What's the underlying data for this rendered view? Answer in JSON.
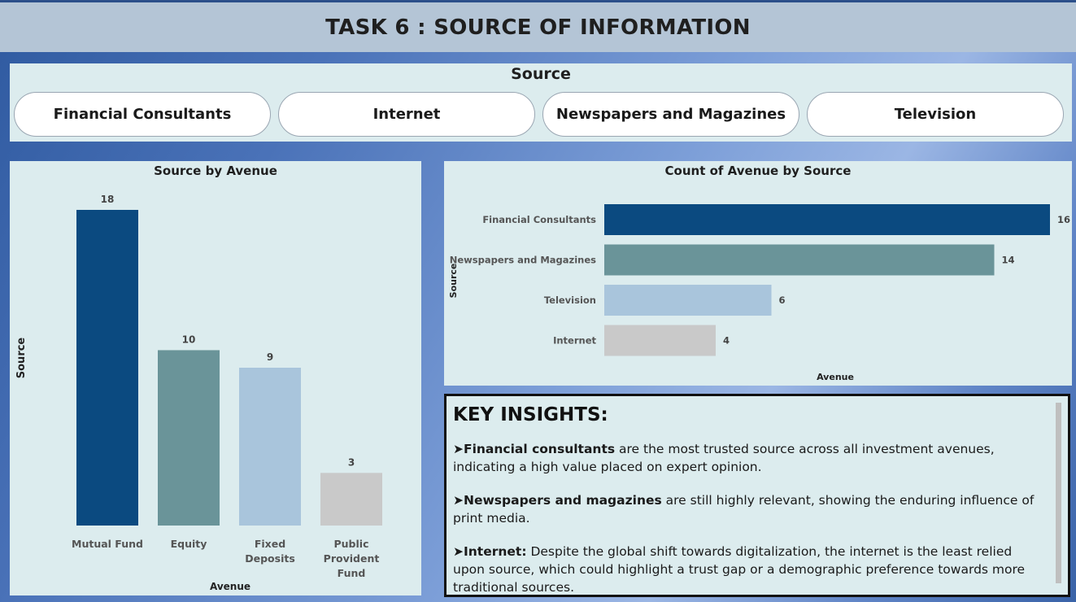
{
  "title": "TASK 6 : SOURCE OF INFORMATION",
  "slicer": {
    "title": "Source",
    "buttons": [
      "Financial Consultants",
      "Internet",
      "Newspapers and Magazines",
      "Television"
    ]
  },
  "colors": {
    "dark_blue": "#0b4a80",
    "teal": "#6a9499",
    "light_blue": "#a9c5dc",
    "gray": "#c9c9c9"
  },
  "insights": {
    "heading": "KEY INSIGHTS:",
    "items": [
      {
        "bullet": "➤",
        "bold": "Financial consultants",
        "text": " are the most trusted source across all investment avenues, indicating a high value placed on expert opinion."
      },
      {
        "bullet": "➤",
        "bold": "Newspapers and magazines",
        "text": " are still highly relevant, showing the enduring influence of print media."
      },
      {
        "bullet": "➤",
        "bold": "Internet:",
        "text": " Despite the global shift towards digitalization, the internet is the least relied upon source, which could highlight a trust gap or a demographic preference towards more traditional sources."
      }
    ]
  },
  "chart_data": [
    {
      "type": "bar",
      "title": "Source by Avenue",
      "xlabel": "Avenue",
      "ylabel": "Source",
      "categories": [
        "Mutual Fund",
        "Equity",
        "Fixed Deposits",
        "Public Provident Fund"
      ],
      "category_lines": [
        [
          "Mutual Fund"
        ],
        [
          "Equity"
        ],
        [
          "Fixed",
          "Deposits"
        ],
        [
          "Public",
          "Provident",
          "Fund"
        ]
      ],
      "values": [
        18,
        10,
        9,
        3
      ],
      "colors": [
        "#0b4a80",
        "#6a9499",
        "#a9c5dc",
        "#c9c9c9"
      ],
      "ylim": [
        0,
        18
      ],
      "grid": false,
      "data_labels": true
    },
    {
      "type": "bar",
      "orientation": "horizontal",
      "title": "Count of Avenue by Source",
      "xlabel": "Avenue",
      "ylabel": "Source",
      "categories": [
        "Financial Consultants",
        "Newspapers and Magazines",
        "Television",
        "Internet"
      ],
      "values": [
        16,
        14,
        6,
        4
      ],
      "colors": [
        "#0b4a80",
        "#6a9499",
        "#a9c5dc",
        "#c9c9c9"
      ],
      "xlim": [
        0,
        16
      ],
      "grid": false,
      "data_labels": true
    }
  ]
}
